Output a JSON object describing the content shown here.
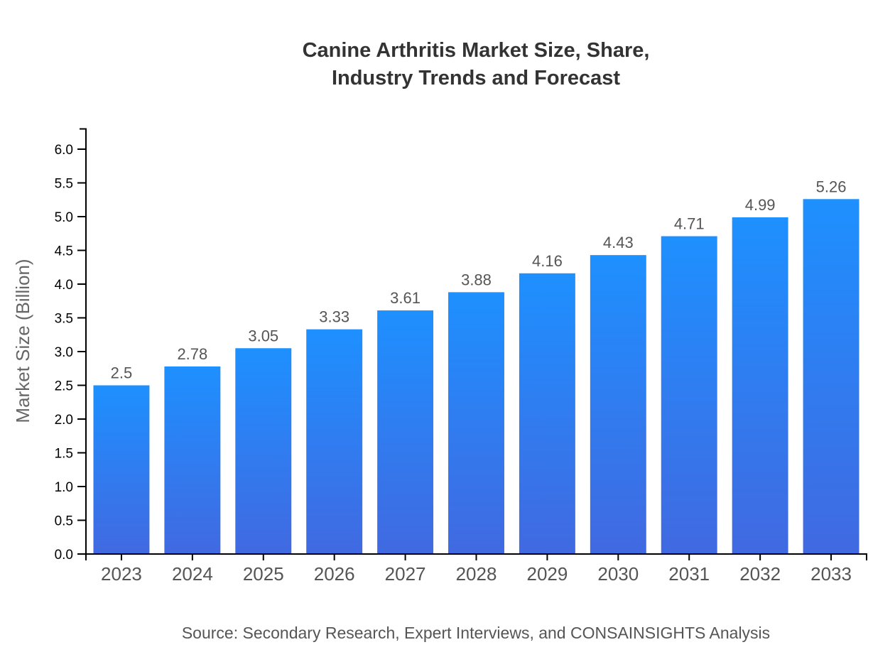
{
  "chart_data": {
    "type": "bar",
    "title_lines": [
      "Canine Arthritis Market Size, Share,",
      "Industry Trends and Forecast"
    ],
    "xlabel": "",
    "ylabel": "Market Size (Billion)",
    "categories": [
      "2023",
      "2024",
      "2025",
      "2026",
      "2027",
      "2028",
      "2029",
      "2030",
      "2031",
      "2032",
      "2033"
    ],
    "values": [
      2.5,
      2.78,
      3.05,
      3.33,
      3.61,
      3.88,
      4.16,
      4.43,
      4.71,
      4.99,
      5.26
    ],
    "value_labels": [
      "2.5",
      "2.78",
      "3.05",
      "3.33",
      "3.61",
      "3.88",
      "4.16",
      "4.43",
      "4.71",
      "4.99",
      "5.26"
    ],
    "yticks": [
      "0.0",
      "0.5",
      "1.0",
      "1.5",
      "2.0",
      "2.5",
      "3.0",
      "3.5",
      "4.0",
      "4.5",
      "5.0",
      "5.5",
      "6.0"
    ],
    "ylim": [
      0,
      6.3
    ],
    "grid": false,
    "legend": "none",
    "bar_gradient": {
      "top": "#1E90FF",
      "bottom": "#4169E1"
    },
    "source": "Source: Secondary Research, Expert Interviews, and CONSAINSIGHTS Analysis"
  }
}
